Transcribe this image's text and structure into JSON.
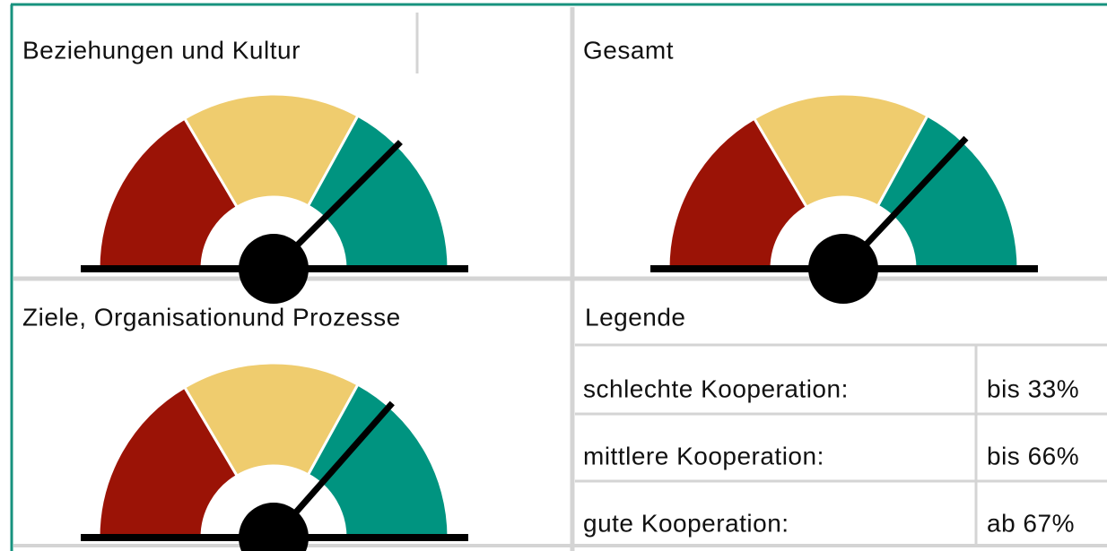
{
  "chart_data": [
    {
      "type": "gauge",
      "title": "Beziehungen und Kultur",
      "value": 75,
      "ylim": [
        0,
        100
      ],
      "bands": [
        {
          "to": 33,
          "color": "#9b1306"
        },
        {
          "to": 66,
          "color": "#efcc6e"
        },
        {
          "to": 100,
          "color": "#009480"
        }
      ]
    },
    {
      "type": "gauge",
      "title": "Gesamt",
      "value": 74,
      "ylim": [
        0,
        100
      ],
      "bands": [
        {
          "to": 33,
          "color": "#9b1306"
        },
        {
          "to": 66,
          "color": "#efcc6e"
        },
        {
          "to": 100,
          "color": "#009480"
        }
      ]
    },
    {
      "type": "gauge",
      "title": "Ziele, Organisationund Prozesse",
      "value": 73,
      "ylim": [
        0,
        100
      ],
      "bands": [
        {
          "to": 33,
          "color": "#9b1306"
        },
        {
          "to": 66,
          "color": "#efcc6e"
        },
        {
          "to": 100,
          "color": "#009480"
        }
      ]
    }
  ],
  "legend": {
    "title": "Legende",
    "rows": [
      [
        "schlechte Kooperation:",
        "bis 33%"
      ],
      [
        "mittlere Kooperation:",
        "bis 66%"
      ],
      [
        "gute Kooperation:",
        "ab 67%"
      ]
    ]
  }
}
